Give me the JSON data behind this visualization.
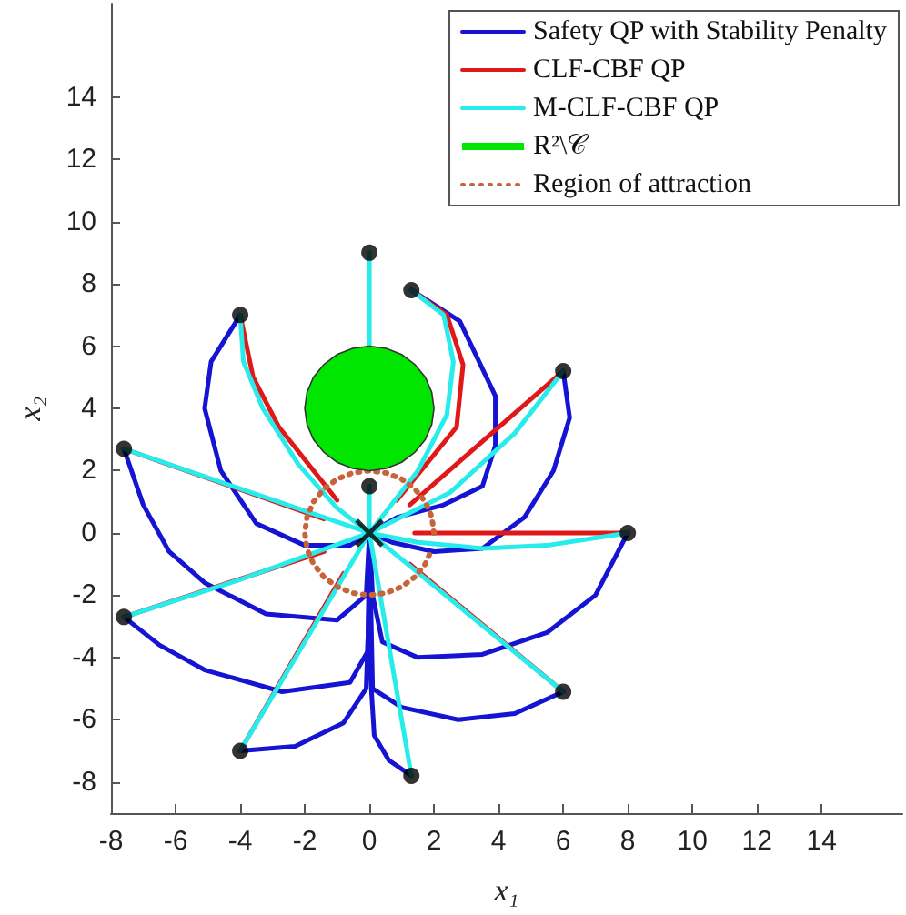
{
  "chart_data": {
    "type": "line",
    "xlabel": "x₁",
    "ylabel": "x₂",
    "xlim": [
      -8,
      16.5
    ],
    "ylim": [
      -9,
      17
    ],
    "xticks": [
      -8,
      -6,
      -4,
      -2,
      0,
      2,
      4,
      6,
      8,
      10,
      12,
      14
    ],
    "yticks": [
      -8,
      -6,
      -4,
      -2,
      0,
      2,
      4,
      6,
      8,
      10,
      12,
      14
    ],
    "legend": "top right",
    "line_style": "solid",
    "series": [
      {
        "name": "Safety QP with Stability Penalty",
        "color": "#1414d2",
        "x": [
          -4,
          -4.9,
          -5.1,
          -4.6,
          -3.5,
          -2,
          -0.6,
          0
        ],
        "values": [
          7,
          5.5,
          4,
          2,
          0.3,
          -0.4,
          -0.4,
          0
        ]
      },
      {
        "color": "#1414d2",
        "x": [
          1.3,
          2.8,
          3.9,
          3.9,
          3.5,
          2.3,
          0.85,
          0
        ],
        "values": [
          7.8,
          6.8,
          4.4,
          2.8,
          1.5,
          0.9,
          0.5,
          0
        ]
      },
      {
        "color": "#1414d2",
        "x": [
          6,
          6.2,
          5.7,
          4.8,
          3.5,
          2,
          0.7,
          0
        ],
        "values": [
          5.2,
          3.7,
          2,
          0.5,
          -0.5,
          -0.6,
          -0.3,
          0
        ]
      },
      {
        "color": "#1414d2",
        "x": [
          -7.6,
          -7,
          -6.2,
          -5.1,
          -3.2,
          -1,
          -0.1,
          0
        ],
        "values": [
          2.7,
          0.9,
          -0.6,
          -1.6,
          -2.6,
          -2.8,
          -2,
          0
        ]
      },
      {
        "color": "#1414d2",
        "x": [
          8,
          7,
          5.5,
          3.5,
          1.5,
          0.4,
          0.1,
          0
        ],
        "values": [
          0,
          -2,
          -3.2,
          -3.9,
          -4,
          -3.5,
          -2,
          0
        ]
      },
      {
        "color": "#1414d2",
        "x": [
          -7.6,
          -6.5,
          -5.1,
          -2.7,
          -0.6,
          -0.05,
          0
        ],
        "values": [
          -2.7,
          -3.6,
          -4.4,
          -5.1,
          -4.8,
          -3.8,
          0
        ]
      },
      {
        "color": "#1414d2",
        "x": [
          6,
          4.5,
          2.75,
          1,
          0.1,
          0
        ],
        "values": [
          -5.1,
          -5.8,
          -6,
          -5.6,
          -5,
          0
        ]
      },
      {
        "color": "#1414d2",
        "x": [
          -4,
          -2.3,
          -0.8,
          -0.1,
          0,
          0
        ],
        "values": [
          -7,
          -6.85,
          -6.1,
          -5,
          -2,
          0
        ]
      },
      {
        "color": "#1414d2",
        "x": [
          1.3,
          0.6,
          0.15,
          0,
          0
        ],
        "values": [
          -7.8,
          -7.3,
          -6.5,
          -4,
          0
        ]
      },
      {
        "name": "CLF-CBF QP",
        "color": "#e01818",
        "x": [
          -4,
          -3.6,
          -2.8,
          -1
        ],
        "values": [
          7,
          5,
          3.4,
          1.05
        ]
      },
      {
        "color": "#e01818",
        "x": [
          -7.6,
          -1.4
        ],
        "values": [
          2.7,
          0.45
        ]
      },
      {
        "color": "#e01818",
        "x": [
          1.3,
          2.4,
          2.9,
          2.7,
          0.85
        ],
        "values": [
          7.8,
          7,
          5.4,
          3.4,
          1.05
        ]
      },
      {
        "color": "#e01818",
        "x": [
          6,
          1.25
        ],
        "values": [
          5.2,
          0.9
        ]
      },
      {
        "color": "#e01818",
        "x": [
          8,
          1.4
        ],
        "values": [
          0,
          0
        ]
      },
      {
        "color": "#e01818",
        "x": [
          6,
          1.25
        ],
        "values": [
          -5.1,
          -1
        ]
      },
      {
        "color": "#e01818",
        "x": [
          -7.6,
          -1.4
        ],
        "values": [
          -2.7,
          -0.6
        ]
      },
      {
        "color": "#e01818",
        "x": [
          -4,
          -0.8
        ],
        "values": [
          -7,
          -1.3
        ]
      },
      {
        "name": "M-CLF-CBF QP",
        "color": "#28ecec",
        "x": [
          -4,
          -3.9,
          -3.3,
          -2.2,
          -1,
          0
        ],
        "values": [
          7,
          5.5,
          4,
          2.2,
          0.8,
          0
        ]
      },
      {
        "color": "#28ecec",
        "x": [
          0,
          0
        ],
        "values": [
          9,
          6
        ]
      },
      {
        "color": "#28ecec",
        "x": [
          1.3,
          2.3,
          2.6,
          2.4,
          1.5,
          0
        ],
        "values": [
          7.8,
          7,
          5.5,
          3.8,
          2,
          0
        ]
      },
      {
        "color": "#28ecec",
        "x": [
          6,
          4.5,
          2.5,
          0
        ],
        "values": [
          5.2,
          3.2,
          1.3,
          0
        ]
      },
      {
        "color": "#28ecec",
        "x": [
          -7.6,
          0
        ],
        "values": [
          2.7,
          0
        ]
      },
      {
        "color": "#28ecec",
        "x": [
          0,
          0
        ],
        "values": [
          1.5,
          0
        ]
      },
      {
        "color": "#28ecec",
        "x": [
          8,
          5.5,
          3.5,
          1.5,
          0
        ],
        "values": [
          0,
          -0.4,
          -0.5,
          -0.3,
          0
        ]
      },
      {
        "color": "#28ecec",
        "x": [
          -7.6,
          -4,
          0
        ],
        "values": [
          -2.7,
          -1.5,
          0
        ]
      },
      {
        "color": "#28ecec",
        "x": [
          6,
          0
        ],
        "values": [
          -5.1,
          0
        ]
      },
      {
        "color": "#28ecec",
        "x": [
          -4,
          0
        ],
        "values": [
          -7,
          0
        ]
      },
      {
        "color": "#28ecec",
        "x": [
          1.3,
          0
        ],
        "values": [
          -7.8,
          0
        ]
      },
      {
        "name": "R²\\𝒞",
        "type": "area",
        "color": "#00e600",
        "x": [
          2,
          1.93,
          1.73,
          1.41,
          1,
          0.52,
          0,
          -0.52,
          -1,
          -1.41,
          -1.73,
          -1.93,
          -2,
          -1.93,
          -1.73,
          -1.41,
          -1,
          -0.52,
          0,
          0.52,
          1,
          1.41,
          1.73,
          1.93
        ],
        "values": [
          4,
          4.52,
          5,
          5.41,
          5.73,
          5.93,
          6,
          5.93,
          5.73,
          5.41,
          5,
          4.52,
          4,
          3.48,
          3,
          2.59,
          2.27,
          2.07,
          2,
          2.07,
          2.27,
          2.59,
          3,
          3.48
        ]
      },
      {
        "name": "Region of attraction",
        "color": "#c8643c",
        "line_style": "dotted",
        "x": [
          2,
          1.93,
          1.73,
          1.41,
          1,
          0.52,
          0,
          -0.52,
          -1,
          -1.41,
          -1.73,
          -1.93,
          -2,
          -1.93,
          -1.73,
          -1.41,
          -1,
          -0.52,
          0,
          0.52,
          1,
          1.41,
          1.73,
          1.93
        ],
        "values": [
          0,
          0.52,
          1,
          1.41,
          1.73,
          1.93,
          2,
          1.93,
          1.73,
          1.41,
          1,
          0.52,
          0,
          -0.52,
          -1,
          -1.41,
          -1.73,
          -1.93,
          -2,
          -1.93,
          -1.73,
          -1.41,
          -1,
          -0.52
        ]
      },
      {
        "type": "scatter",
        "color": "#000000",
        "marker": "circle",
        "x": [
          -4,
          0,
          1.3,
          6,
          -7.6,
          0,
          8,
          -7.6,
          6,
          -4,
          1.3
        ],
        "values": [
          7,
          9,
          7.8,
          5.2,
          2.7,
          1.5,
          0,
          -2.7,
          -5.1,
          -7,
          -7.8
        ]
      },
      {
        "type": "scatter",
        "color": "#000000",
        "marker": "cross",
        "x": [
          0
        ],
        "values": [
          0
        ]
      }
    ]
  }
}
